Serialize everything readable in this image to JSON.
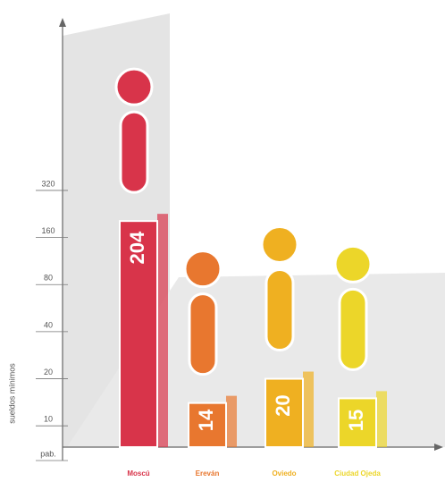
{
  "chart_data": {
    "type": "bar",
    "y_label": "sueldos mínimos",
    "categories": [
      "Moscú",
      "Ereván",
      "Oviedo",
      "Ciudad Ojeda"
    ],
    "values": [
      204,
      14,
      20,
      15
    ],
    "colors": [
      "#d8344a",
      "#e8772f",
      "#efb021",
      "#ecd629"
    ],
    "ylim": [
      6,
      3800
    ],
    "log_scale": true,
    "yticks": [
      {
        "value": 6,
        "label": "pab."
      },
      10,
      20,
      40,
      80,
      160,
      320
    ]
  }
}
